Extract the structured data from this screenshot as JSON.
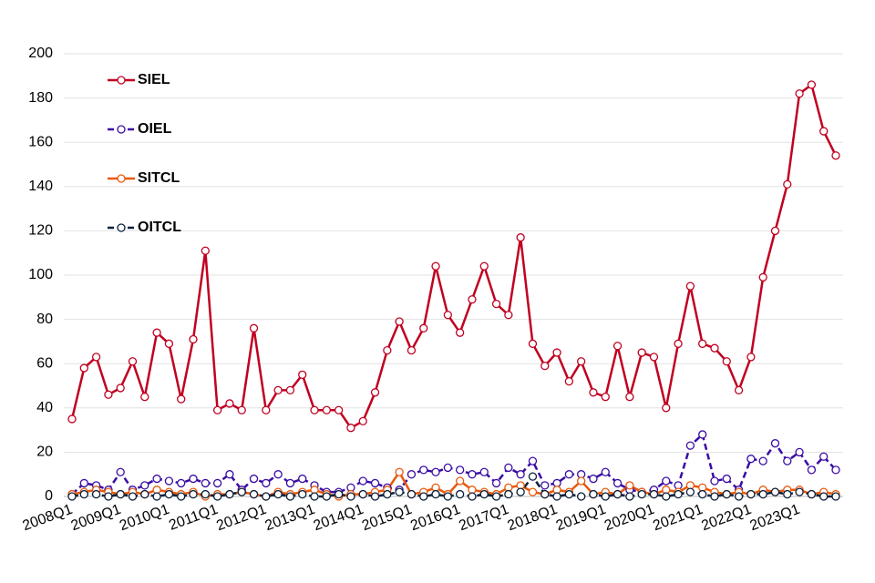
{
  "chart_data": {
    "type": "line",
    "categories": [
      "2008Q1",
      null,
      null,
      null,
      "2009Q1",
      null,
      null,
      null,
      "2010Q1",
      null,
      null,
      null,
      "2011Q1",
      null,
      null,
      null,
      "2012Q1",
      null,
      null,
      null,
      "2013Q1",
      null,
      null,
      null,
      "2014Q1",
      null,
      null,
      null,
      "2015Q1",
      null,
      null,
      null,
      "2016Q1",
      null,
      null,
      null,
      "2017Q1",
      null,
      null,
      null,
      "2018Q1",
      null,
      null,
      null,
      "2019Q1",
      null,
      null,
      null,
      "2020Q1",
      null,
      null,
      null,
      "2021Q1",
      null,
      null,
      null,
      "2022Q1",
      null,
      null,
      null,
      "2023Q1",
      null,
      null,
      null
    ],
    "series": [
      {
        "name": "SIEL",
        "color": "#c00020",
        "dash": false,
        "values": [
          35,
          58,
          63,
          46,
          49,
          61,
          45,
          74,
          69,
          44,
          71,
          111,
          39,
          42,
          39,
          76,
          39,
          48,
          48,
          55,
          39,
          39,
          39,
          31,
          34,
          47,
          66,
          79,
          66,
          76,
          104,
          82,
          74,
          89,
          104,
          87,
          82,
          117,
          69,
          59,
          65,
          52,
          61,
          47,
          45,
          68,
          45,
          65,
          63,
          40,
          69,
          95,
          69,
          67,
          61,
          48,
          63,
          99,
          120,
          141,
          182,
          186,
          165,
          154
        ]
      },
      {
        "name": "OIEL",
        "color": "#3a0ca3",
        "dash": true,
        "values": [
          1,
          6,
          5,
          3,
          11,
          3,
          5,
          8,
          7,
          6,
          8,
          6,
          6,
          10,
          3,
          8,
          6,
          10,
          6,
          8,
          5,
          2,
          2,
          4,
          7,
          6,
          4,
          3,
          10,
          12,
          11,
          13,
          12,
          10,
          11,
          6,
          13,
          10,
          16,
          5,
          6,
          10,
          10,
          8,
          11,
          6,
          3,
          2,
          3,
          7,
          5,
          23,
          28,
          7,
          8,
          3,
          17,
          16,
          24,
          16,
          20,
          12,
          18,
          12
        ]
      },
      {
        "name": "SITCL",
        "color": "#e8590c",
        "dash": false,
        "values": [
          1,
          2,
          3,
          2,
          1,
          2,
          1,
          3,
          2,
          1,
          2,
          0,
          1,
          1,
          2,
          1,
          0,
          2,
          1,
          2,
          3,
          1,
          0,
          1,
          1,
          2,
          3,
          11,
          1,
          2,
          4,
          1,
          7,
          3,
          2,
          1,
          4,
          5,
          2,
          1,
          3,
          2,
          7,
          1,
          2,
          1,
          5,
          2,
          1,
          3,
          2,
          5,
          4,
          2,
          1,
          2,
          1,
          3,
          2,
          3,
          3,
          1,
          2,
          1
        ]
      },
      {
        "name": "OITCL",
        "color": "#0b1f3a",
        "dash": true,
        "values": [
          0,
          1,
          1,
          0,
          1,
          0,
          1,
          0,
          1,
          0,
          1,
          1,
          0,
          1,
          2,
          1,
          0,
          1,
          0,
          1,
          0,
          0,
          1,
          0,
          1,
          0,
          1,
          2,
          1,
          0,
          1,
          0,
          1,
          0,
          1,
          0,
          1,
          2,
          9,
          1,
          0,
          1,
          0,
          1,
          0,
          1,
          0,
          1,
          1,
          0,
          1,
          2,
          1,
          0,
          1,
          0,
          1,
          1,
          2,
          1,
          2,
          1,
          0,
          0
        ]
      }
    ],
    "ylim": [
      0,
      200
    ],
    "yticks": [
      0,
      20,
      40,
      60,
      80,
      100,
      120,
      140,
      160,
      180,
      200
    ],
    "grid": true,
    "legend": "upper left"
  }
}
